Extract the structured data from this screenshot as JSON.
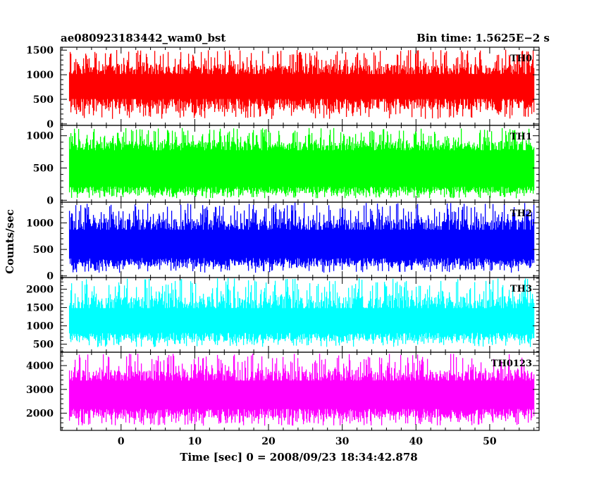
{
  "header": {
    "title": "ae080923183442_wam0_bst",
    "bin_time": "Bin time: 1.5625E−2 s"
  },
  "axes": {
    "xlabel": "Time [sec] 0 = 2008/09/23 18:34:42.878",
    "ylabel": "Counts/sec"
  },
  "chart_data": {
    "type": "line",
    "xlim": [
      -8.2,
      56.7
    ],
    "xticks": [
      0,
      10,
      20,
      30,
      40,
      50
    ],
    "x_minor_step": 2,
    "data_x_range": [
      -7.0,
      56.0
    ],
    "panels": [
      {
        "name": "TH0",
        "color": "#ff0000",
        "ylim": [
          -30,
          1560
        ],
        "yticks": [
          0,
          500,
          1000,
          1500
        ],
        "band": [
          420,
          1100
        ],
        "spread": [
          100,
          1510
        ]
      },
      {
        "name": "TH1",
        "color": "#00ff00",
        "ylim": [
          -30,
          1160
        ],
        "yticks": [
          0,
          500,
          1000
        ],
        "band": [
          160,
          840
        ],
        "spread": [
          30,
          1120
        ]
      },
      {
        "name": "TH2",
        "color": "#0000ff",
        "ylim": [
          -30,
          1390
        ],
        "yticks": [
          0,
          500,
          1000
        ],
        "band": [
          260,
          950
        ],
        "spread": [
          60,
          1380
        ]
      },
      {
        "name": "TH3",
        "color": "#00ffff",
        "ylim": [
          280,
          2320
        ],
        "yticks": [
          500,
          1000,
          1500,
          2000
        ],
        "band": [
          700,
          1600
        ],
        "spread": [
          420,
          2300
        ]
      },
      {
        "name": "TH0123",
        "color": "#ff00ff",
        "ylim": [
          1280,
          4560
        ],
        "yticks": [
          2000,
          3000,
          4000
        ],
        "band": [
          2000,
          3550
        ],
        "spread": [
          1480,
          4500
        ]
      }
    ]
  }
}
